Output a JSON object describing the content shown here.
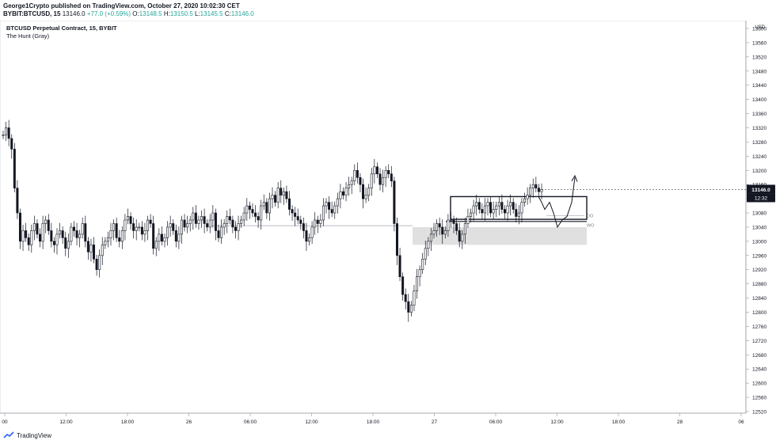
{
  "header": {
    "publisher_line": "George1Crypto published on TradingView.com, October 27, 2020 10:02:30 CET",
    "symbol": "BYBIT:BTCUSD, 15",
    "last": "13146.0",
    "change": "+77.0 (+0.59%)",
    "ohlc_o_label": "O:",
    "ohlc_o": "13148.5",
    "ohlc_h_label": "H:",
    "ohlc_h": "13150.5",
    "ohlc_l_label": "L:",
    "ohlc_l": "13145.5",
    "ohlc_c_label": "C:",
    "ohlc_c": "13146.0"
  },
  "footer": {
    "brand": "TradingView"
  },
  "chart_data": {
    "type": "candlestick",
    "title": "BTCUSD Perpetual Contract, 15, BYBIT",
    "subtitle": "The Hunt (Gray)",
    "currency_label": "USD",
    "ylim": [
      12520,
      13600
    ],
    "y_ticks": [
      13600,
      13560,
      13520,
      13480,
      13440,
      13400,
      13360,
      13320,
      13280,
      13240,
      13200,
      13160,
      13120,
      13080,
      13040,
      13000,
      12960,
      12920,
      12880,
      12840,
      12800,
      12760,
      12720,
      12680,
      12640,
      12600,
      12560,
      12520
    ],
    "x_ticks": [
      "00",
      "12:00",
      "18:00",
      "26",
      "06:00",
      "12:00",
      "18:00",
      "27",
      "06:00",
      "12:00",
      "18:00",
      "28",
      "06"
    ],
    "last_price_label": "13146.0",
    "countdown_label": "12:32",
    "level_labels": [
      "DO",
      "WO"
    ],
    "grid": false,
    "colors": {
      "up": "#26a69a",
      "down": "#131722",
      "zone": "#e0e0e0",
      "level": "#b2b5be"
    },
    "series": [
      {
        "values": [
          13300,
          13320,
          13290,
          13260,
          13150,
          13080,
          13000,
          13030,
          13010,
          12990,
          13030,
          13050,
          13020,
          13000,
          13050,
          13060,
          13030,
          13000,
          12990,
          13020,
          13030,
          13010,
          12980,
          13000,
          13040,
          13030,
          13010,
          13020,
          13050,
          13000,
          12970,
          12990,
          12950,
          12920,
          12960,
          12990,
          13000,
          13010,
          13030,
          13050,
          13010,
          13000,
          13030,
          13060,
          13070,
          13050,
          13030,
          13040,
          13040,
          13020,
          13030,
          13060,
          13050,
          12980,
          13000,
          13020,
          13000,
          13010,
          13040,
          13050,
          13030,
          13000,
          13020,
          13060,
          13040,
          13050,
          13060,
          13080,
          13050,
          13060,
          13070,
          13050,
          13040,
          13060,
          13080,
          13030,
          13010,
          13040,
          13050,
          13070,
          13060,
          13040,
          13030,
          13050,
          13060,
          13080,
          13100,
          13090,
          13080,
          13070,
          13060,
          13100,
          13110,
          13080,
          13120,
          13130,
          13110,
          13150,
          13130,
          13140,
          13120,
          13090,
          13080,
          13070,
          13060,
          13050,
          13030,
          13000,
          13010,
          13040,
          13060,
          13050,
          13060,
          13100,
          13110,
          13090,
          13080,
          13100,
          13120,
          13140,
          13130,
          13150,
          13160,
          13170,
          13200,
          13180,
          13160,
          13120,
          13130,
          13150,
          13190,
          13210,
          13190,
          13160,
          13180,
          13200,
          13190,
          13170,
          13050,
          12960,
          12900,
          12850,
          12830,
          12800,
          12820,
          12860,
          12900,
          12920,
          12950,
          12980,
          13000,
          13020,
          13030,
          13050,
          13040,
          13020,
          13030,
          13060,
          13060,
          13050,
          13030,
          13000,
          13020,
          13050,
          13070,
          13080,
          13100,
          13110,
          13090,
          13080,
          13100,
          13110,
          13080,
          13090,
          13100,
          13110,
          13090,
          13080,
          13100,
          13110,
          13090,
          13070,
          13080,
          13110,
          13120,
          13130,
          13150,
          13160,
          13150,
          13140,
          13146
        ]
      }
    ],
    "hand_drawn_path": true
  }
}
